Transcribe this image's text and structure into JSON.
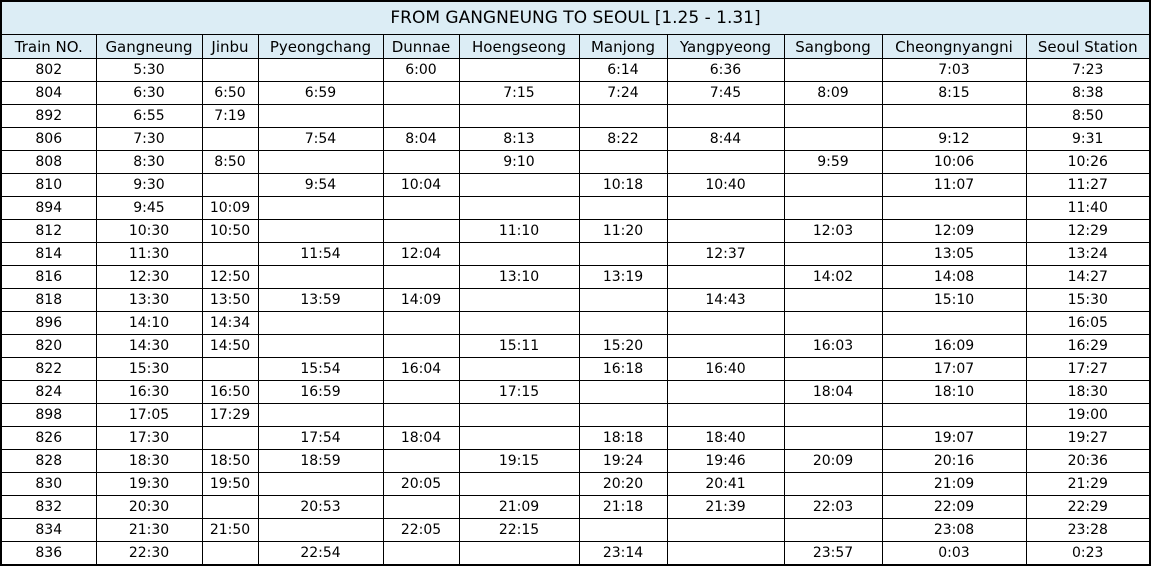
{
  "title": "FROM GANGNEUNG TO SEOUL [1.25 - 1.31]",
  "columns": [
    "Train NO.",
    "Gangneung",
    "Jinbu",
    "Pyeongchang",
    "Dunnae",
    "Hoengseong",
    "Manjong",
    "Yangpyeong",
    "Sangbong",
    "Cheongnyangni",
    "Seoul Station"
  ],
  "rows": [
    [
      "802",
      "5:30",
      "",
      "",
      "6:00",
      "",
      "6:14",
      "6:36",
      "",
      "7:03",
      "7:23"
    ],
    [
      "804",
      "6:30",
      "6:50",
      "6:59",
      "",
      "7:15",
      "7:24",
      "7:45",
      "8:09",
      "8:15",
      "8:38"
    ],
    [
      "892",
      "6:55",
      "7:19",
      "",
      "",
      "",
      "",
      "",
      "",
      "",
      "8:50"
    ],
    [
      "806",
      "7:30",
      "",
      "7:54",
      "8:04",
      "8:13",
      "8:22",
      "8:44",
      "",
      "9:12",
      "9:31"
    ],
    [
      "808",
      "8:30",
      "8:50",
      "",
      "",
      "9:10",
      "",
      "",
      "9:59",
      "10:06",
      "10:26"
    ],
    [
      "810",
      "9:30",
      "",
      "9:54",
      "10:04",
      "",
      "10:18",
      "10:40",
      "",
      "11:07",
      "11:27"
    ],
    [
      "894",
      "9:45",
      "10:09",
      "",
      "",
      "",
      "",
      "",
      "",
      "",
      "11:40"
    ],
    [
      "812",
      "10:30",
      "10:50",
      "",
      "",
      "11:10",
      "11:20",
      "",
      "12:03",
      "12:09",
      "12:29"
    ],
    [
      "814",
      "11:30",
      "",
      "11:54",
      "12:04",
      "",
      "",
      "12:37",
      "",
      "13:05",
      "13:24"
    ],
    [
      "816",
      "12:30",
      "12:50",
      "",
      "",
      "13:10",
      "13:19",
      "",
      "14:02",
      "14:08",
      "14:27"
    ],
    [
      "818",
      "13:30",
      "13:50",
      "13:59",
      "14:09",
      "",
      "",
      "14:43",
      "",
      "15:10",
      "15:30"
    ],
    [
      "896",
      "14:10",
      "14:34",
      "",
      "",
      "",
      "",
      "",
      "",
      "",
      "16:05"
    ],
    [
      "820",
      "14:30",
      "14:50",
      "",
      "",
      "15:11",
      "15:20",
      "",
      "16:03",
      "16:09",
      "16:29"
    ],
    [
      "822",
      "15:30",
      "",
      "15:54",
      "16:04",
      "",
      "16:18",
      "16:40",
      "",
      "17:07",
      "17:27"
    ],
    [
      "824",
      "16:30",
      "16:50",
      "16:59",
      "",
      "17:15",
      "",
      "",
      "18:04",
      "18:10",
      "18:30"
    ],
    [
      "898",
      "17:05",
      "17:29",
      "",
      "",
      "",
      "",
      "",
      "",
      "",
      "19:00"
    ],
    [
      "826",
      "17:30",
      "",
      "17:54",
      "18:04",
      "",
      "18:18",
      "18:40",
      "",
      "19:07",
      "19:27"
    ],
    [
      "828",
      "18:30",
      "18:50",
      "18:59",
      "",
      "19:15",
      "19:24",
      "19:46",
      "20:09",
      "20:16",
      "20:36"
    ],
    [
      "830",
      "19:30",
      "19:50",
      "",
      "20:05",
      "",
      "20:20",
      "20:41",
      "",
      "21:09",
      "21:29"
    ],
    [
      "832",
      "20:30",
      "",
      "20:53",
      "",
      "21:09",
      "21:18",
      "21:39",
      "22:03",
      "22:09",
      "22:29"
    ],
    [
      "834",
      "21:30",
      "21:50",
      "",
      "22:05",
      "22:15",
      "",
      "",
      "",
      "23:08",
      "23:28"
    ],
    [
      "836",
      "22:30",
      "",
      "22:54",
      "",
      "",
      "23:14",
      "",
      "23:57",
      "0:03",
      "0:23"
    ]
  ],
  "colors": {
    "header_bg": "#dcedf5",
    "border": "#000000"
  }
}
